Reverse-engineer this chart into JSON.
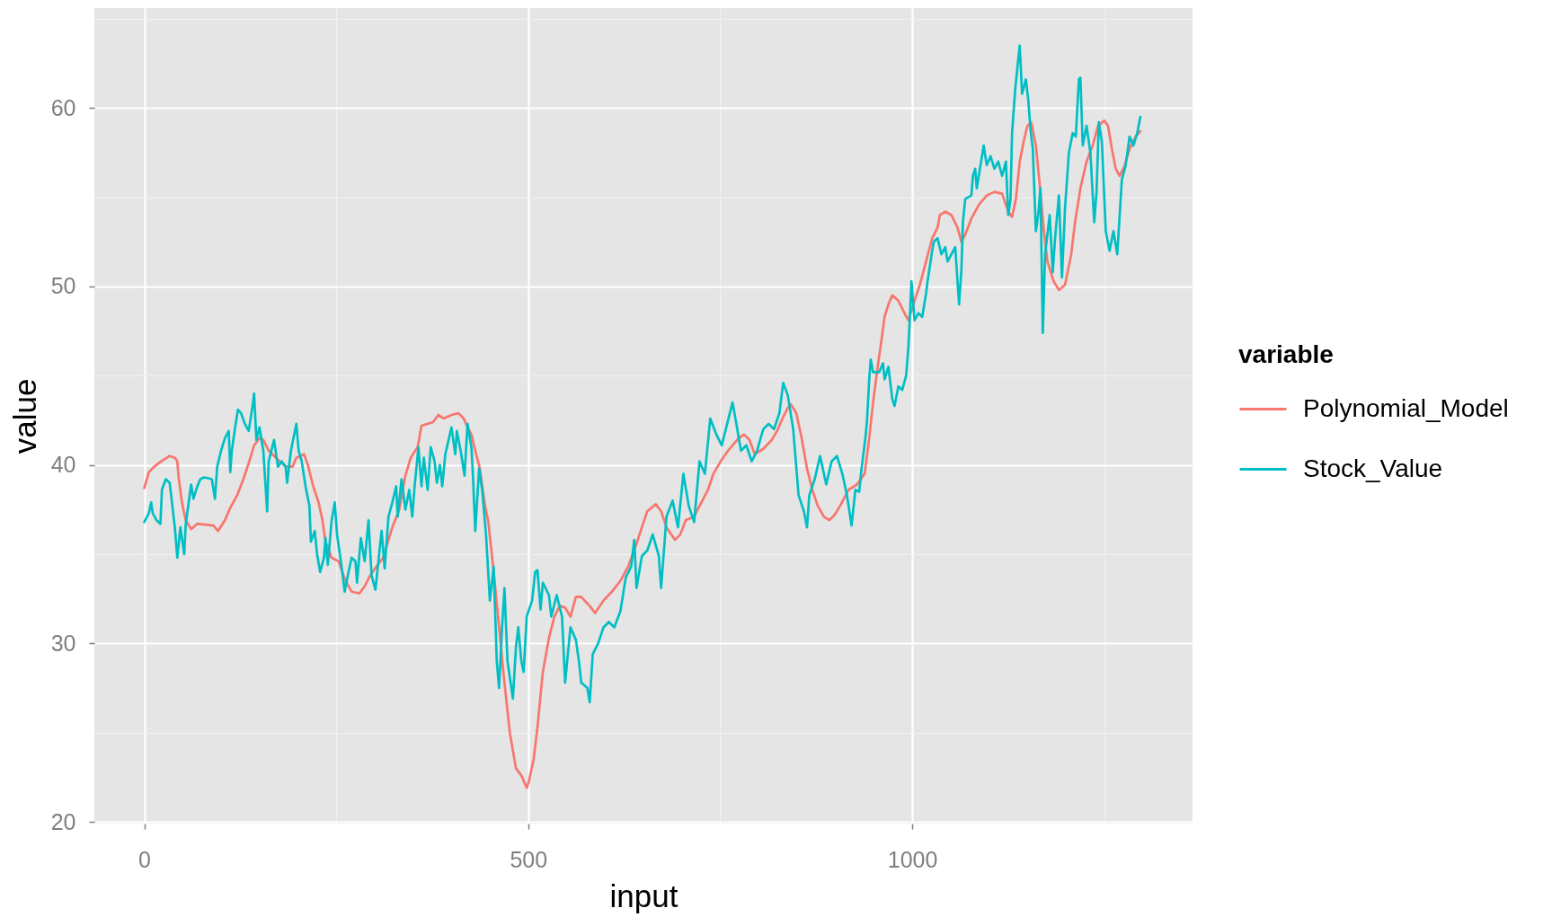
{
  "chart_data": {
    "type": "line",
    "xlabel": "input",
    "ylabel": "value",
    "legend_title": "variable",
    "legend": "right",
    "grid": true,
    "xlim": [
      -65,
      1365
    ],
    "ylim": [
      19.9,
      65.6
    ],
    "xticks": [
      0,
      500,
      1000
    ],
    "yticks": [
      20,
      30,
      40,
      50,
      60
    ],
    "series": [
      {
        "name": "Polynomial_Model",
        "color": "#f8766d",
        "x": [
          0,
          6,
          13,
          22,
          33,
          40,
          43,
          45,
          49,
          54,
          61,
          69,
          90,
          96,
          105,
          112,
          121,
          129,
          136,
          143,
          150,
          155,
          162,
          174,
          184,
          193,
          198,
          208,
          213,
          220,
          227,
          232,
          236,
          244,
          253,
          261,
          270,
          280,
          287,
          294,
          304,
          311,
          316,
          323,
          332,
          340,
          347,
          356,
          361,
          376,
          383,
          390,
          400,
          409,
          416,
          421,
          426,
          431,
          437,
          443,
          448,
          455,
          462,
          469,
          476,
          484,
          491,
          498,
          501,
          507,
          512,
          519,
          527,
          534,
          541,
          548,
          555,
          562,
          569,
          580,
          587,
          598,
          609,
          620,
          630,
          638,
          648,
          655,
          666,
          673,
          680,
          691,
          698,
          705,
          716,
          723,
          734,
          741,
          752,
          762,
          774,
          781,
          788,
          795,
          806,
          817,
          824,
          831,
          838,
          842,
          849,
          856,
          863,
          870,
          877,
          885,
          892,
          899,
          906,
          917,
          928,
          938,
          944,
          949,
          955,
          960,
          964,
          969,
          974,
          982,
          990,
          995,
          1003,
          1010,
          1018,
          1026,
          1033,
          1036,
          1043,
          1051,
          1059,
          1064,
          1069,
          1077,
          1087,
          1097,
          1107,
          1117,
          1125,
          1130,
          1135,
          1140,
          1145,
          1150,
          1155,
          1161,
          1166,
          1171,
          1176,
          1184,
          1191,
          1199,
          1207,
          1212,
          1219,
          1227,
          1235,
          1242,
          1250,
          1255,
          1260,
          1265,
          1270,
          1276,
          1283,
          1291,
          1297
        ],
        "values": [
          38.7,
          39.6,
          39.9,
          40.2,
          40.5,
          40.4,
          40.2,
          39.2,
          37.9,
          36.9,
          36.4,
          36.7,
          36.6,
          36.3,
          36.9,
          37.6,
          38.3,
          39.2,
          40.1,
          41.1,
          41.5,
          41.4,
          40.8,
          40.3,
          39.9,
          39.9,
          40.4,
          40.6,
          40.0,
          38.8,
          37.9,
          36.9,
          35.7,
          34.8,
          34.6,
          33.6,
          32.9,
          32.8,
          33.2,
          33.8,
          34.4,
          34.8,
          35.5,
          36.5,
          37.5,
          39.4,
          40.4,
          41.0,
          42.2,
          42.4,
          42.8,
          42.6,
          42.8,
          42.9,
          42.6,
          42.1,
          41.7,
          40.8,
          39.8,
          37.9,
          36.8,
          34.0,
          30.9,
          27.8,
          25.0,
          23.0,
          22.6,
          21.9,
          22.3,
          23.5,
          25.3,
          28.4,
          30.3,
          31.5,
          32.1,
          32.0,
          31.5,
          32.6,
          32.6,
          32.1,
          31.7,
          32.4,
          32.9,
          33.5,
          34.3,
          35.2,
          36.5,
          37.4,
          37.8,
          37.4,
          36.5,
          35.8,
          36.1,
          36.9,
          37.1,
          37.7,
          38.6,
          39.5,
          40.3,
          40.9,
          41.5,
          41.7,
          41.4,
          40.6,
          40.9,
          41.4,
          41.9,
          42.6,
          43.2,
          43.4,
          42.9,
          41.5,
          39.8,
          38.6,
          37.7,
          37.1,
          36.9,
          37.2,
          37.7,
          38.6,
          38.9,
          39.5,
          41.5,
          43.5,
          45.5,
          47.0,
          48.3,
          49.0,
          49.5,
          49.2,
          48.5,
          48.1,
          49.2,
          50.1,
          51.4,
          52.7,
          53.3,
          54.0,
          54.2,
          54.0,
          53.3,
          52.5,
          52.9,
          53.8,
          54.6,
          55.1,
          55.3,
          55.2,
          54.2,
          53.9,
          54.9,
          57.0,
          58.1,
          59.0,
          59.2,
          57.9,
          55.7,
          53.3,
          51.4,
          50.3,
          49.8,
          50.1,
          51.8,
          53.6,
          55.5,
          57.0,
          57.9,
          59.0,
          59.3,
          59.0,
          57.7,
          56.6,
          56.2,
          56.7,
          57.7,
          58.4,
          58.7
        ]
      },
      {
        "name": "Stock_Value",
        "color": "#00bfc4",
        "x": [
          0,
          6,
          9,
          11,
          16,
          21,
          23,
          28,
          33,
          35,
          40,
          43,
          47,
          52,
          54,
          61,
          64,
          69,
          73,
          78,
          88,
          92,
          95,
          100,
          105,
          110,
          112,
          114,
          119,
          122,
          126,
          131,
          136,
          141,
          143,
          146,
          150,
          155,
          160,
          162,
          169,
          174,
          179,
          184,
          186,
          191,
          198,
          201,
          205,
          210,
          215,
          217,
          222,
          225,
          229,
          234,
          236,
          239,
          244,
          248,
          251,
          256,
          261,
          265,
          270,
          275,
          277,
          282,
          287,
          292,
          296,
          301,
          309,
          313,
          318,
          323,
          328,
          330,
          335,
          340,
          345,
          349,
          352,
          357,
          361,
          364,
          369,
          373,
          378,
          381,
          385,
          388,
          392,
          400,
          405,
          407,
          412,
          417,
          421,
          426,
          428,
          431,
          436,
          440,
          445,
          450,
          455,
          459,
          462,
          466,
          469,
          473,
          480,
          484,
          487,
          491,
          494,
          498,
          505,
          509,
          512,
          516,
          519,
          527,
          530,
          537,
          544,
          548,
          552,
          555,
          562,
          566,
          569,
          577,
          580,
          584,
          591,
          598,
          605,
          612,
          620,
          627,
          634,
          638,
          641,
          648,
          655,
          662,
          670,
          673,
          680,
          688,
          695,
          702,
          709,
          716,
          723,
          730,
          737,
          745,
          752,
          759,
          766,
          771,
          777,
          784,
          791,
          798,
          806,
          813,
          820,
          827,
          832,
          838,
          845,
          852,
          859,
          863,
          866,
          873,
          880,
          888,
          895,
          902,
          909,
          915,
          921,
          926,
          931,
          934,
          939,
          941,
          944,
          946,
          949,
          957,
          962,
          964,
          969,
          974,
          977,
          982,
          987,
          992,
          995,
          997,
          999,
          1003,
          1008,
          1013,
          1018,
          1020,
          1026,
          1028,
          1033,
          1038,
          1043,
          1046,
          1056,
          1061,
          1064,
          1066,
          1069,
          1077,
          1079,
          1082,
          1084,
          1089,
          1093,
          1097,
          1102,
          1107,
          1112,
          1117,
          1122,
          1125,
          1128,
          1130,
          1134,
          1138,
          1140,
          1143,
          1148,
          1151,
          1154,
          1157,
          1161,
          1164,
          1167,
          1170,
          1173,
          1179,
          1183,
          1186,
          1191,
          1195,
          1199,
          1204,
          1209,
          1213,
          1217,
          1219,
          1222,
          1227,
          1232,
          1237,
          1240,
          1243,
          1247,
          1252,
          1257,
          1262,
          1267,
          1273,
          1278,
          1283,
          1288,
          1293,
          1297
        ],
        "values": [
          36.8,
          37.3,
          37.9,
          37.3,
          36.9,
          36.7,
          38.6,
          39.2,
          39.0,
          38.3,
          36.4,
          34.8,
          36.5,
          35.0,
          36.7,
          38.9,
          38.1,
          38.8,
          39.2,
          39.3,
          39.2,
          38.1,
          39.9,
          40.8,
          41.5,
          41.9,
          39.6,
          40.8,
          42.3,
          43.1,
          42.9,
          42.3,
          41.9,
          43.3,
          44.0,
          41.4,
          42.1,
          40.8,
          37.4,
          40.2,
          41.4,
          39.9,
          40.2,
          39.9,
          39.0,
          40.8,
          42.3,
          40.8,
          40.2,
          38.8,
          37.7,
          35.7,
          36.3,
          35.0,
          34.0,
          34.8,
          35.9,
          34.4,
          36.9,
          37.9,
          36.1,
          34.6,
          32.9,
          33.8,
          34.8,
          34.6,
          33.4,
          35.9,
          34.6,
          36.9,
          33.8,
          33.0,
          36.3,
          34.2,
          37.1,
          37.9,
          38.8,
          37.1,
          39.2,
          37.5,
          38.6,
          37.1,
          38.8,
          41.0,
          38.8,
          40.4,
          38.6,
          41.0,
          40.2,
          39.0,
          40.0,
          38.8,
          40.6,
          42.1,
          40.6,
          41.9,
          40.8,
          39.4,
          42.3,
          41.0,
          39.4,
          36.3,
          39.8,
          38.6,
          36.1,
          32.4,
          34.3,
          29.0,
          27.5,
          31.0,
          33.1,
          29.0,
          26.9,
          29.8,
          30.9,
          29.0,
          28.4,
          31.5,
          32.4,
          34.0,
          34.1,
          31.9,
          33.4,
          32.7,
          31.5,
          32.7,
          31.5,
          27.8,
          29.6,
          30.9,
          30.2,
          29.0,
          27.8,
          27.5,
          26.7,
          29.4,
          30.0,
          30.9,
          31.2,
          30.9,
          31.8,
          33.7,
          34.3,
          35.8,
          33.1,
          34.9,
          35.2,
          36.1,
          34.9,
          33.1,
          37.1,
          38.0,
          36.5,
          39.5,
          37.7,
          36.8,
          40.2,
          39.5,
          42.6,
          41.7,
          41.1,
          42.3,
          43.5,
          42.3,
          40.8,
          41.1,
          40.2,
          40.8,
          42.0,
          42.3,
          42.0,
          42.9,
          44.6,
          43.9,
          42.0,
          38.3,
          37.4,
          36.5,
          38.3,
          39.2,
          40.5,
          38.9,
          40.2,
          40.5,
          39.5,
          38.3,
          36.6,
          38.6,
          38.5,
          39.8,
          41.5,
          42.4,
          44.8,
          45.9,
          45.2,
          45.2,
          45.7,
          44.8,
          45.5,
          43.7,
          43.3,
          44.4,
          44.2,
          45.0,
          46.6,
          48.3,
          50.3,
          48.1,
          48.5,
          48.3,
          49.6,
          50.3,
          52.0,
          52.5,
          52.7,
          51.8,
          52.2,
          51.4,
          52.2,
          49.0,
          50.9,
          53.6,
          54.9,
          55.1,
          56.2,
          56.6,
          55.5,
          56.8,
          57.9,
          56.8,
          57.3,
          56.6,
          57.0,
          56.2,
          57.0,
          54.0,
          54.9,
          58.6,
          61.0,
          62.7,
          63.5,
          60.8,
          61.6,
          60.5,
          58.8,
          57.7,
          53.1,
          54.0,
          55.5,
          47.4,
          51.8,
          54.0,
          50.8,
          52.7,
          55.1,
          50.5,
          54.4,
          57.5,
          58.6,
          58.4,
          61.6,
          61.7,
          57.9,
          59.0,
          57.5,
          53.6,
          55.3,
          59.2,
          58.1,
          53.1,
          52.0,
          53.1,
          51.8,
          56.0,
          56.8,
          58.4,
          57.9,
          58.6,
          59.5
        ]
      }
    ]
  }
}
